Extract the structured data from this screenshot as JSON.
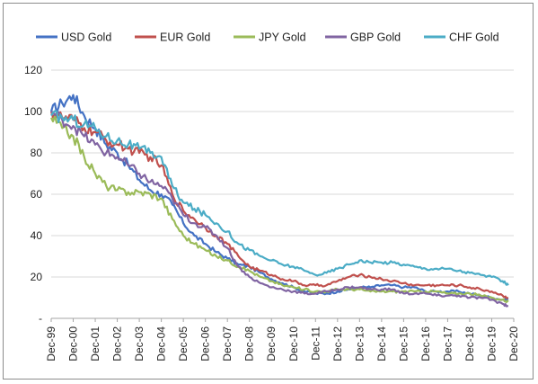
{
  "chart_data": {
    "type": "line",
    "title": "",
    "xlabel": "",
    "ylabel": "",
    "ylim": [
      0,
      120
    ],
    "yticks": [
      {
        "value": 0,
        "label": "-"
      },
      {
        "value": 20,
        "label": "20"
      },
      {
        "value": 40,
        "label": "40"
      },
      {
        "value": 60,
        "label": "60"
      },
      {
        "value": 80,
        "label": "80"
      },
      {
        "value": 100,
        "label": "100"
      },
      {
        "value": 120,
        "label": "120"
      }
    ],
    "xlim": [
      1999.92,
      2020.92
    ],
    "xticks": [
      {
        "value": 1999.92,
        "label": "Dec-99"
      },
      {
        "value": 2000.92,
        "label": "Dec-00"
      },
      {
        "value": 2001.92,
        "label": "Dec-01"
      },
      {
        "value": 2002.92,
        "label": "Dec-02"
      },
      {
        "value": 2003.92,
        "label": "Dec-03"
      },
      {
        "value": 2004.92,
        "label": "Dec-04"
      },
      {
        "value": 2005.92,
        "label": "Dec-05"
      },
      {
        "value": 2006.92,
        "label": "Dec-06"
      },
      {
        "value": 2007.92,
        "label": "Dec-07"
      },
      {
        "value": 2008.92,
        "label": "Dec-08"
      },
      {
        "value": 2009.92,
        "label": "Dec-09"
      },
      {
        "value": 2010.92,
        "label": "Dec-10"
      },
      {
        "value": 2011.92,
        "label": "Dec-11"
      },
      {
        "value": 2012.92,
        "label": "Dec-12"
      },
      {
        "value": 2013.92,
        "label": "Dec-13"
      },
      {
        "value": 2014.92,
        "label": "Dec-14"
      },
      {
        "value": 2015.92,
        "label": "Dec-15"
      },
      {
        "value": 2016.92,
        "label": "Dec-16"
      },
      {
        "value": 2017.92,
        "label": "Dec-17"
      },
      {
        "value": 2018.92,
        "label": "Dec-18"
      },
      {
        "value": 2019.92,
        "label": "Dec-19"
      },
      {
        "value": 2020.92,
        "label": "Dec-20"
      }
    ],
    "grid": true,
    "legend_position": "top",
    "x": [
      1999.92,
      2000.42,
      2000.92,
      2001.42,
      2001.92,
      2002.42,
      2002.92,
      2003.42,
      2003.92,
      2004.42,
      2004.92,
      2005.42,
      2005.92,
      2006.42,
      2006.92,
      2007.42,
      2007.92,
      2008.42,
      2008.92,
      2009.42,
      2009.92,
      2010.42,
      2010.92,
      2011.42,
      2011.92,
      2012.42,
      2012.92,
      2013.42,
      2013.92,
      2014.42,
      2014.92,
      2015.42,
      2015.92,
      2016.42,
      2016.92,
      2017.42,
      2017.92,
      2018.42,
      2018.92,
      2019.42,
      2019.92,
      2020.42,
      2020.67
    ],
    "series": [
      {
        "name": "USD Gold",
        "color": "#4472c4",
        "values": [
          100,
          104,
          108,
          98,
          92,
          84,
          80,
          74,
          67,
          62,
          60,
          55,
          46,
          40,
          36,
          32,
          29,
          26,
          25,
          22,
          19,
          17,
          15,
          13,
          12,
          12,
          13,
          14,
          15,
          15,
          16,
          16,
          15,
          15,
          13,
          13,
          13,
          13,
          12,
          11,
          10,
          9,
          9
        ]
      },
      {
        "name": "EUR Gold",
        "color": "#c0504d",
        "values": [
          100,
          97,
          96,
          92,
          90,
          86,
          84,
          82,
          80,
          78,
          74,
          60,
          52,
          48,
          44,
          40,
          36,
          30,
          25,
          23,
          21,
          19,
          18,
          16,
          16,
          16,
          18,
          20,
          21,
          20,
          19,
          18,
          17,
          16,
          16,
          16,
          16,
          16,
          15,
          14,
          13,
          11,
          10
        ]
      },
      {
        "name": "JPY Gold",
        "color": "#9bbb59",
        "values": [
          97,
          92,
          88,
          78,
          70,
          64,
          62,
          61,
          61,
          60,
          58,
          48,
          40,
          36,
          33,
          30,
          28,
          25,
          23,
          20,
          18,
          16,
          15,
          14,
          13,
          13,
          14,
          14,
          14,
          13,
          13,
          13,
          13,
          13,
          13,
          13,
          12,
          12,
          12,
          11,
          10,
          9,
          8
        ]
      },
      {
        "name": "GBP Gold",
        "color": "#8064a2",
        "values": [
          100,
          96,
          93,
          88,
          84,
          80,
          78,
          74,
          70,
          66,
          64,
          58,
          50,
          46,
          44,
          40,
          34,
          25,
          20,
          17,
          15,
          14,
          13,
          12,
          12,
          13,
          14,
          15,
          15,
          14,
          14,
          14,
          12,
          12,
          12,
          11,
          11,
          11,
          10,
          10,
          9,
          7,
          6
        ]
      },
      {
        "name": "CHF Gold",
        "color": "#4bacc6",
        "values": [
          98,
          97,
          96,
          94,
          92,
          88,
          86,
          84,
          82,
          80,
          78,
          64,
          56,
          53,
          50,
          46,
          42,
          36,
          33,
          30,
          28,
          26,
          25,
          23,
          21,
          22,
          24,
          26,
          28,
          27,
          27,
          27,
          26,
          25,
          24,
          24,
          24,
          23,
          22,
          21,
          20,
          18,
          16
        ]
      }
    ]
  }
}
